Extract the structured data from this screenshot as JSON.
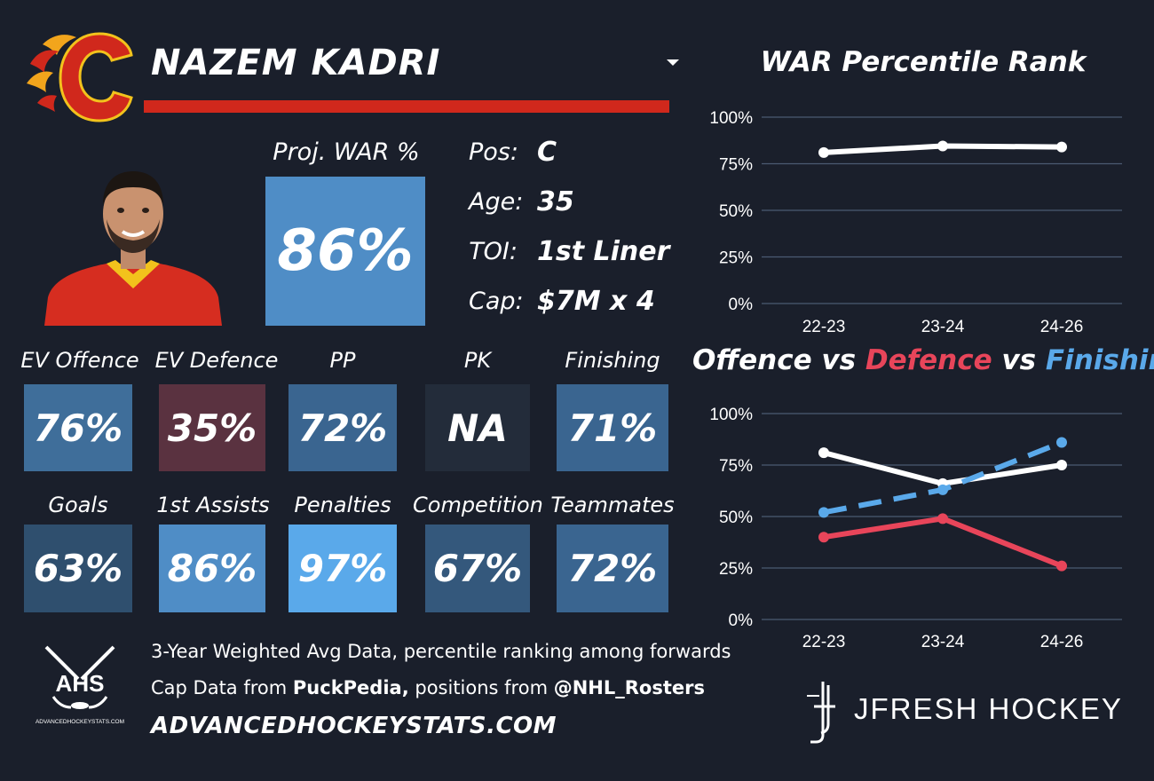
{
  "player": {
    "name": "NAZEM KADRI",
    "team_logo_icon": "calgary-flaming-c-icon",
    "photo_icon": "player-headshot-icon"
  },
  "projected_war": {
    "label": "Proj. WAR %",
    "value": "86%",
    "color": "#4f8dc6"
  },
  "info": [
    {
      "label": "Pos:",
      "value": "C"
    },
    {
      "label": "Age:",
      "value": "35"
    },
    {
      "label": "TOI:",
      "value": "1st Liner"
    },
    {
      "label": "Cap:",
      "value": "$7M x 4"
    }
  ],
  "tiles_row1": [
    {
      "label": "EV Offence",
      "value": "76%",
      "color": "#3f6e9a"
    },
    {
      "label": "EV Defence",
      "value": "35%",
      "color": "#5a3240"
    },
    {
      "label": "PP",
      "value": "72%",
      "color": "#3a6590"
    },
    {
      "label": "PK",
      "value": "NA",
      "color": "#232c3a"
    },
    {
      "label": "Finishing",
      "value": "71%",
      "color": "#3a6590"
    }
  ],
  "tiles_row2": [
    {
      "label": "Goals",
      "value": "63%",
      "color": "#2f4f6e"
    },
    {
      "label": "1st Assists",
      "value": "86%",
      "color": "#4f8dc6"
    },
    {
      "label": "Penalties",
      "value": "97%",
      "color": "#5aa9ea"
    },
    {
      "label": "Competition",
      "value": "67%",
      "color": "#34587c"
    },
    {
      "label": "Teammates",
      "value": "72%",
      "color": "#3a6590"
    }
  ],
  "footer": {
    "line1": "3-Year Weighted Avg Data, percentile ranking among forwards",
    "line2_prefix": "Cap Data from ",
    "line2_bold1": "PuckPedia,",
    "line2_mid": " positions from ",
    "line2_bold2": "@NHL_Rosters",
    "site": "ADVANCEDHOCKEYSTATS.COM",
    "ahs_logo_text": "AHS",
    "ahs_logo_sub": "ADVANCEDHOCKEYSTATS.COM",
    "jfresh": "JFRESH HOCKEY"
  },
  "chart_data": [
    {
      "type": "line",
      "title": "WAR Percentile Rank",
      "categories": [
        "22-23",
        "23-24",
        "24-26"
      ],
      "ylim": [
        0,
        100
      ],
      "yticks": [
        "0%",
        "25%",
        "50%",
        "75%",
        "100%"
      ],
      "grid": true,
      "series": [
        {
          "values": [
            81,
            84.5,
            84
          ],
          "color": "#ffffff",
          "dashed": false
        }
      ]
    },
    {
      "type": "line",
      "title_parts": [
        {
          "text": "Offence",
          "color": "#ffffff"
        },
        {
          "text": " vs ",
          "color": "#ffffff"
        },
        {
          "text": "Defence",
          "color": "#e8455a"
        },
        {
          "text": " vs ",
          "color": "#ffffff"
        },
        {
          "text": "Finishing",
          "color": "#5aa9ea"
        }
      ],
      "categories": [
        "22-23",
        "23-24",
        "24-26"
      ],
      "ylim": [
        0,
        100
      ],
      "yticks": [
        "0%",
        "25%",
        "50%",
        "75%",
        "100%"
      ],
      "grid": true,
      "series": [
        {
          "name": "Offence",
          "values": [
            81,
            66,
            75
          ],
          "color": "#ffffff",
          "dashed": false
        },
        {
          "name": "Defence",
          "values": [
            40,
            49,
            26
          ],
          "color": "#e8455a",
          "dashed": false
        },
        {
          "name": "Finishing",
          "values": [
            52,
            63,
            86
          ],
          "color": "#5aa9ea",
          "dashed": true
        }
      ]
    }
  ]
}
